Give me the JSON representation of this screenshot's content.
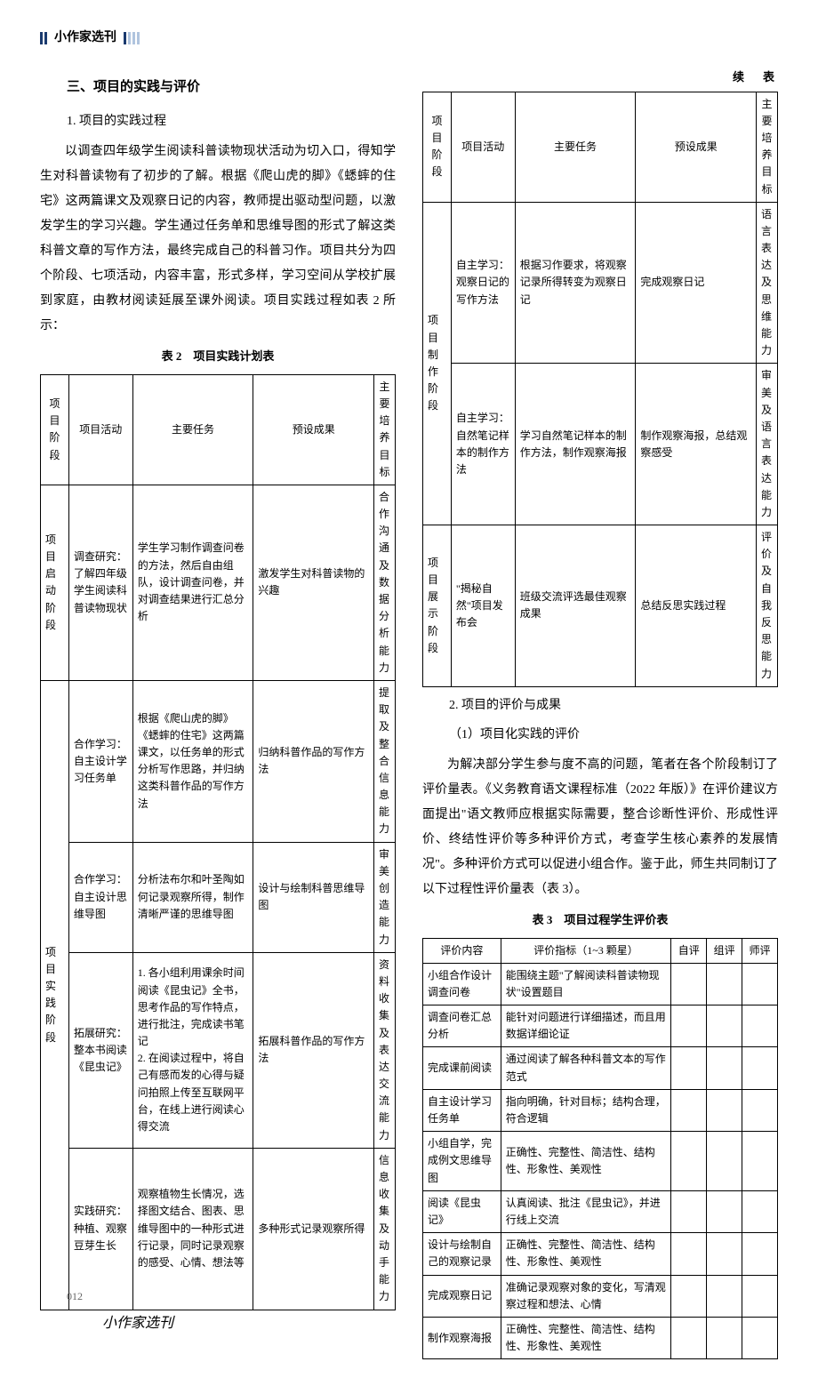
{
  "header": {
    "journal": "小作家选刊"
  },
  "section": {
    "title": "三、项目的实践与评价",
    "sub1": "1. 项目的实践过程",
    "para1": "以调查四年级学生阅读科普读物现状活动为切入口，得知学生对科普读物有了初步的了解。根据《爬山虎的脚》《蟋蟀的住宅》这两篇课文及观察日记的内容，教师提出驱动型问题，以激发学生的学习兴趣。学生通过任务单和思维导图的形式了解这类科普文章的写作方法，最终完成自己的科普习作。项目共分为四个阶段、七项活动，内容丰富，形式多样，学习空间从学校扩展到家庭，由教材阅读延展至课外阅读。项目实践过程如表 2 所示：",
    "sub2": "2. 项目的评价与成果",
    "sub2a": "（1）项目化实践的评价",
    "para2": "为解决部分学生参与度不高的问题，笔者在各个阶段制订了评价量表。《义务教育语文课程标准（2022 年版）》在评价建议方面提出\"语文教师应根据实际需要，整合诊断性评价、形成性评价、终结性评价等多种评价方式，考查学生核心素养的发展情况\"。多种评价方式可以促进小组合作。鉴于此，师生共同制订了以下过程性评价量表（表 3）。"
  },
  "table2": {
    "caption": "表 2　项目实践计划表",
    "cont_label": "续　表",
    "headers": [
      "项目阶段",
      "项目活动",
      "主要任务",
      "预设成果",
      "主要培养目标"
    ],
    "rows_left": [
      {
        "stage": "项目启动阶段",
        "activity": "调查研究：了解四年级学生阅读科普读物现状",
        "task": "学生学习制作调查问卷的方法，然后自由组队，设计调查问卷，并对调查结果进行汇总分析",
        "outcome": "激发学生对科普读物的兴趣",
        "goal": "合作沟通及数据分析能力"
      },
      {
        "stage": "项目实践阶段",
        "activity": "合作学习：自主设计学习任务单",
        "task": "根据《爬山虎的脚》《蟋蟀的住宅》这两篇课文，以任务单的形式分析写作思路，并归纳这类科普作品的写作方法",
        "outcome": "归纳科普作品的写作方法",
        "goal": "提取及整合信息能力"
      },
      {
        "activity": "合作学习：自主设计思维导图",
        "task": "分析法布尔和叶圣陶如何记录观察所得，制作清晰严谨的思维导图",
        "outcome": "设计与绘制科普思维导图",
        "goal": "审美创造能力"
      },
      {
        "activity": "拓展研究：整本书阅读《昆虫记》",
        "task": "1. 各小组利用课余时间阅读《昆虫记》全书，思考作品的写作特点，进行批注，完成读书笔记\n2. 在阅读过程中，将自己有感而发的心得与疑问拍照上传至互联网平台，在线上进行阅读心得交流",
        "outcome": "拓展科普作品的写作方法",
        "goal": "资料收集及表达交流能力"
      },
      {
        "activity": "实践研究：种植、观察豆芽生长",
        "task": "观察植物生长情况，选择图文结合、图表、思维导图中的一种形式进行记录，同时记录观察的感受、心情、想法等",
        "outcome": "多种形式记录观察所得",
        "goal": "信息收集及动手能力"
      }
    ],
    "rows_right": [
      {
        "stage": "项目制作阶段",
        "activity": "自主学习：观察日记的写作方法",
        "task": "根据习作要求，将观察记录所得转变为观察日记",
        "outcome": "完成观察日记",
        "goal": "语言表达及思维能力"
      },
      {
        "activity": "自主学习：自然笔记样本的制作方法",
        "task": "学习自然笔记样本的制作方法，制作观察海报",
        "outcome": "制作观察海报，总结观察感受",
        "goal": "审美及语言表达能力"
      },
      {
        "stage": "项目展示阶段",
        "activity": "\"揭秘自然\"项目发布会",
        "task": "班级交流评选最佳观察成果",
        "outcome": "总结反思实践过程",
        "goal": "评价及自我反思能力"
      }
    ]
  },
  "table3": {
    "caption": "表 3　项目过程学生评价表",
    "headers": [
      "评价内容",
      "评价指标（1~3 颗星）",
      "自评",
      "组评",
      "师评"
    ],
    "rows": [
      {
        "c": "小组合作设计调查问卷",
        "i": "能围绕主题\"了解阅读科普读物现状\"设置题目"
      },
      {
        "c": "调查问卷汇总分析",
        "i": "能针对问题进行详细描述，而且用数据详细论证"
      },
      {
        "c": "完成课前阅读",
        "i": "通过阅读了解各种科普文本的写作范式"
      },
      {
        "c": "自主设计学习任务单",
        "i": "指向明确，针对目标；结构合理，符合逻辑"
      },
      {
        "c": "小组自学，完成例文思维导图",
        "i": "正确性、完整性、简洁性、结构性、形象性、美观性"
      },
      {
        "c": "阅读《昆虫记》",
        "i": "认真阅读、批注《昆虫记》，并进行线上交流"
      },
      {
        "c": "设计与绘制自己的观察记录",
        "i": "正确性、完整性、简洁性、结构性、形象性、美观性"
      },
      {
        "c": "完成观察日记",
        "i": "准确记录观察对象的变化，写清观察过程和想法、心情"
      },
      {
        "c": "制作观察海报",
        "i": "正确性、完整性、简洁性、结构性、形象性、美观性"
      }
    ]
  },
  "footer": {
    "page_num": "012",
    "logo": "小作家选刊"
  }
}
